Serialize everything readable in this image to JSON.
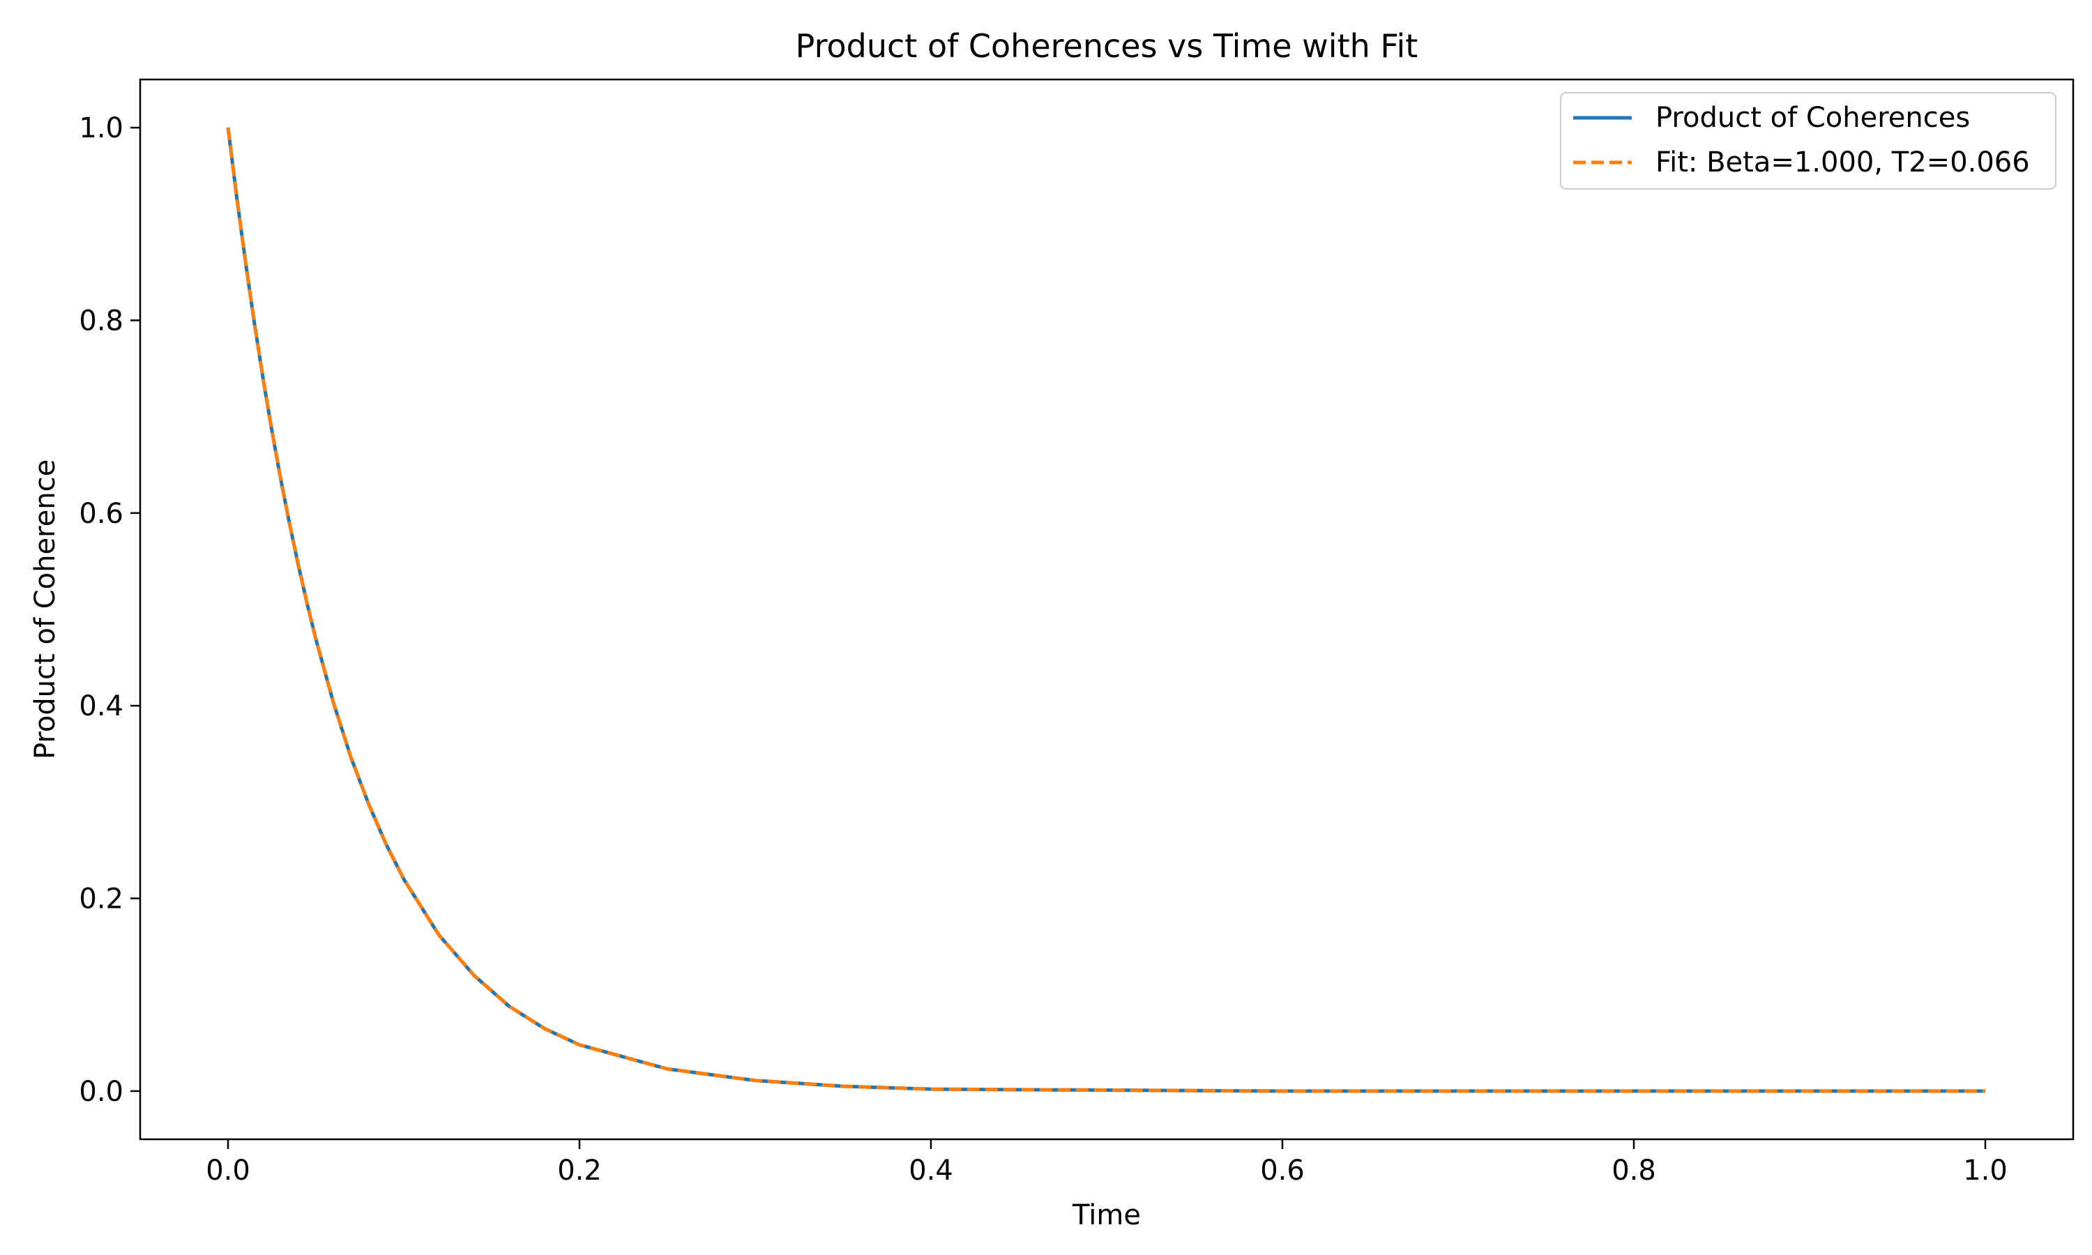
{
  "chart_data": {
    "type": "line",
    "title": "Product of Coherences vs Time with Fit",
    "xlabel": "Time",
    "ylabel": "Product of Coherence",
    "xlim": [
      -0.05,
      1.05
    ],
    "ylim": [
      -0.05,
      1.05
    ],
    "xticks": [
      0.0,
      0.2,
      0.4,
      0.6,
      0.8,
      1.0
    ],
    "xtick_labels": [
      "0.0",
      "0.2",
      "0.4",
      "0.6",
      "0.8",
      "1.0"
    ],
    "yticks": [
      0.0,
      0.2,
      0.4,
      0.6,
      0.8,
      1.0
    ],
    "ytick_labels": [
      "0.0",
      "0.2",
      "0.4",
      "0.6",
      "0.8",
      "1.0"
    ],
    "grid": false,
    "legend_position": "top-right",
    "series": [
      {
        "name": "Product of Coherences",
        "color": "#1f77b4",
        "style": "solid",
        "x": [
          0.0,
          0.005,
          0.01,
          0.015,
          0.02,
          0.025,
          0.03,
          0.035,
          0.04,
          0.045,
          0.05,
          0.06,
          0.07,
          0.08,
          0.09,
          0.1,
          0.12,
          0.14,
          0.16,
          0.18,
          0.2,
          0.25,
          0.3,
          0.35,
          0.4,
          0.5,
          0.6,
          0.7,
          0.8,
          0.9,
          1.0
        ],
        "y": [
          1.0,
          0.927,
          0.86,
          0.797,
          0.739,
          0.685,
          0.635,
          0.589,
          0.546,
          0.506,
          0.469,
          0.403,
          0.346,
          0.298,
          0.256,
          0.22,
          0.162,
          0.12,
          0.088,
          0.065,
          0.048,
          0.023,
          0.011,
          0.005,
          0.002,
          0.001,
          0.0,
          0.0,
          0.0,
          0.0,
          0.0
        ]
      },
      {
        "name": "Fit: Beta=1.000, T2=0.066",
        "color": "#ff7f0e",
        "style": "dashed",
        "x": [
          0.0,
          0.005,
          0.01,
          0.015,
          0.02,
          0.025,
          0.03,
          0.035,
          0.04,
          0.045,
          0.05,
          0.06,
          0.07,
          0.08,
          0.09,
          0.1,
          0.12,
          0.14,
          0.16,
          0.18,
          0.2,
          0.25,
          0.3,
          0.35,
          0.4,
          0.5,
          0.6,
          0.7,
          0.8,
          0.9,
          1.0
        ],
        "y": [
          1.0,
          0.927,
          0.86,
          0.797,
          0.739,
          0.685,
          0.635,
          0.589,
          0.546,
          0.506,
          0.469,
          0.403,
          0.346,
          0.298,
          0.256,
          0.22,
          0.162,
          0.12,
          0.088,
          0.065,
          0.048,
          0.023,
          0.011,
          0.005,
          0.002,
          0.001,
          0.0,
          0.0,
          0.0,
          0.0,
          0.0
        ]
      }
    ]
  }
}
